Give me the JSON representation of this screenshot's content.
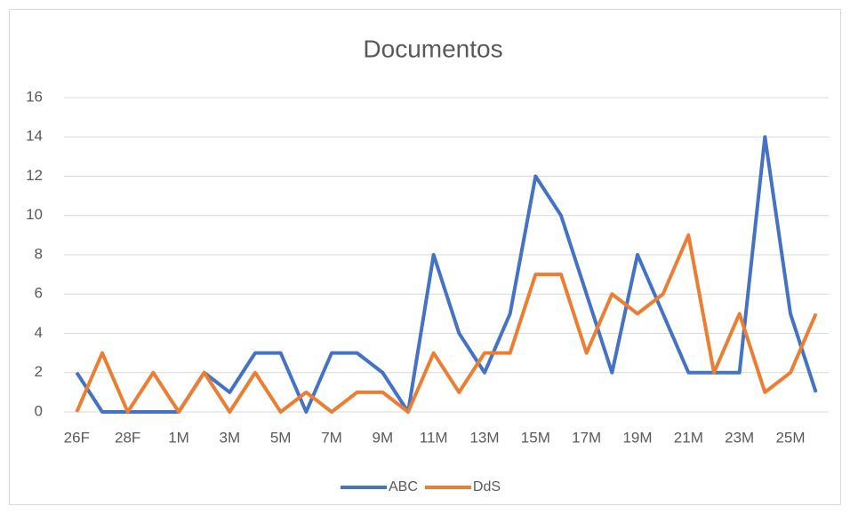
{
  "chart_data": {
    "type": "line",
    "title": "Documentos",
    "categories": [
      "26F",
      null,
      "28F",
      null,
      "1M",
      null,
      "3M",
      null,
      "5M",
      null,
      "7M",
      null,
      "9M",
      null,
      "11M",
      null,
      "13M",
      null,
      "15M",
      null,
      "17M",
      null,
      "19M",
      null,
      "21M",
      null,
      "23M",
      null,
      "25M",
      null
    ],
    "series": [
      {
        "name": "ABC",
        "color": "#4472c4",
        "values": [
          2,
          0,
          0,
          0,
          0,
          2,
          1,
          3,
          3,
          0,
          3,
          3,
          2,
          0,
          8,
          4,
          2,
          5,
          12,
          10,
          6,
          2,
          8,
          5,
          2,
          2,
          2,
          14,
          5,
          1
        ]
      },
      {
        "name": "DdS",
        "color": "#ed7d31",
        "values": [
          0,
          3,
          0,
          2,
          0,
          2,
          0,
          2,
          0,
          1,
          0,
          1,
          1,
          0,
          3,
          1,
          3,
          3,
          7,
          7,
          3,
          6,
          5,
          6,
          9,
          2,
          5,
          1,
          2,
          5
        ]
      }
    ],
    "ylim": [
      0,
      16
    ],
    "yticks": [
      0,
      2,
      4,
      6,
      8,
      10,
      12,
      14,
      16
    ],
    "grid": true,
    "legend": "bottom"
  }
}
